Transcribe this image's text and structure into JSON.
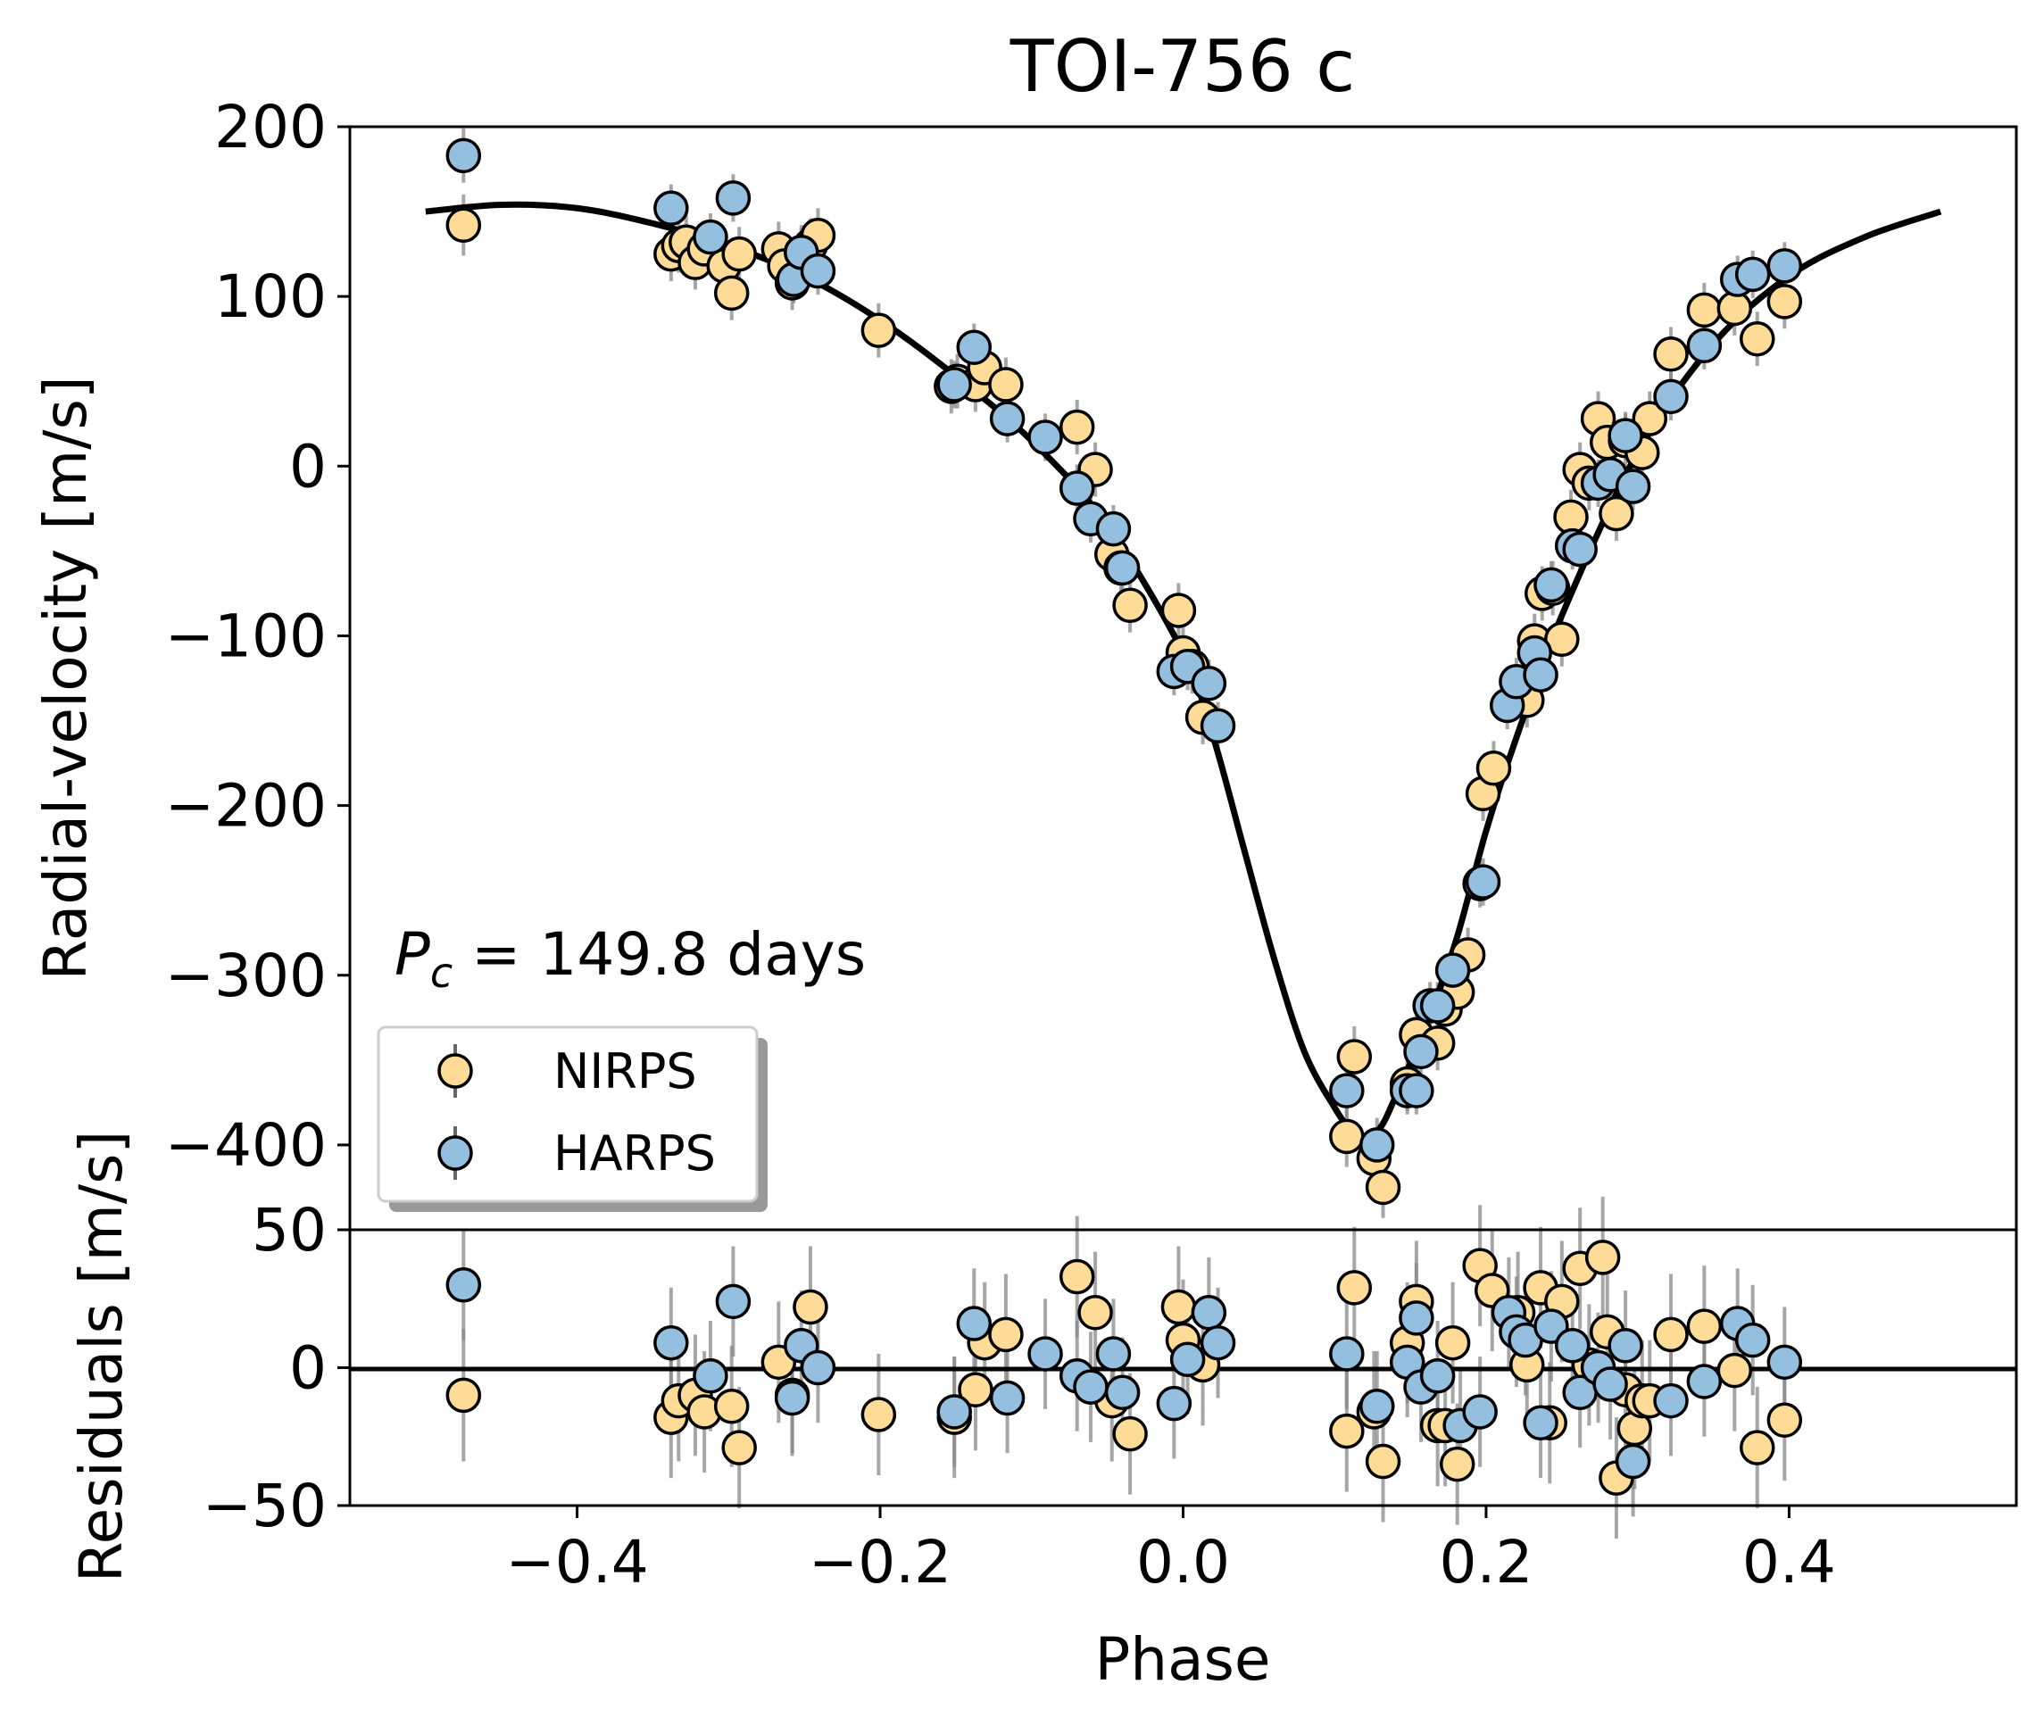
{
  "chart_data": [
    {
      "type": "scatter",
      "title": "TOI-756 c",
      "xlabel": "",
      "ylabel": "Radial-velocity [m/s]",
      "xlim": [
        -0.55,
        0.55
      ],
      "ylim": [
        -450,
        200
      ],
      "yticks": [
        "200",
        "100",
        "0",
        "−100",
        "−200",
        "−300",
        "−400"
      ],
      "ytick_values": [
        200,
        100,
        0,
        -100,
        -200,
        -300,
        -400
      ],
      "grid": false,
      "legend_position": "lower-left",
      "annotation": "P_c = 149.8 days",
      "annotation_italic": "P",
      "annotation_sub": "c",
      "annotation_rest": " = 149.8 days",
      "model": {
        "name": "",
        "x": [
          -0.5,
          -0.45,
          -0.4,
          -0.35,
          -0.3,
          -0.25,
          -0.2,
          -0.15,
          -0.1,
          -0.05,
          0.0,
          0.02,
          0.04,
          0.06,
          0.08,
          0.1,
          0.11,
          0.12,
          0.13,
          0.14,
          0.16,
          0.18,
          0.2,
          0.22,
          0.25,
          0.3,
          0.35,
          0.4,
          0.45,
          0.5
        ],
        "y": [
          150,
          154,
          152,
          143,
          130,
          112,
          86,
          53,
          15,
          -35,
          -110,
          -160,
          -225,
          -290,
          -345,
          -378,
          -390,
          -395,
          -390,
          -372,
          -330,
          -280,
          -215,
          -160,
          -88,
          8,
          72,
          112,
          135,
          150
        ]
      },
      "series": [
        {
          "name": "NIRPS",
          "color": "#fedc98",
          "x": [
            -0.475,
            -0.338,
            -0.333,
            -0.328,
            -0.322,
            -0.316,
            -0.303,
            -0.298,
            -0.293,
            -0.267,
            -0.263,
            -0.258,
            -0.252,
            -0.246,
            -0.241,
            -0.201,
            -0.153,
            -0.149,
            -0.137,
            -0.131,
            -0.117,
            -0.07,
            -0.058,
            -0.047,
            -0.041,
            -0.035,
            -0.003,
            0.0,
            0.006,
            0.013,
            0.108,
            0.113,
            0.126,
            0.132,
            0.148,
            0.154,
            0.168,
            0.173,
            0.181,
            0.188,
            0.198,
            0.205,
            0.227,
            0.232,
            0.237,
            0.244,
            0.25,
            0.256,
            0.262,
            0.268,
            0.274,
            0.28,
            0.286,
            0.292,
            0.303,
            0.308,
            0.322,
            0.344,
            0.364,
            0.379,
            0.397
          ],
          "y": [
            142,
            125,
            130,
            132,
            120,
            128,
            118,
            102,
            125,
            128,
            118,
            108,
            126,
            130,
            136,
            80,
            47,
            50,
            48,
            58,
            48,
            23,
            -2,
            -52,
            -60,
            -82,
            -85,
            -110,
            -118,
            -148,
            -395,
            -348,
            -408,
            -425,
            -364,
            -335,
            -340,
            -320,
            -310,
            -288,
            -193,
            -178,
            -138,
            -103,
            -75,
            -72,
            -102,
            -30,
            -2,
            -10,
            28,
            14,
            -28,
            15,
            8,
            28,
            66,
            92,
            93,
            75,
            97
          ],
          "yerr": [
            18,
            16,
            16,
            16,
            16,
            16,
            16,
            16,
            16,
            16,
            16,
            16,
            16,
            16,
            16,
            16,
            16,
            16,
            16,
            16,
            16,
            16,
            16,
            16,
            16,
            16,
            16,
            16,
            16,
            16,
            18,
            18,
            18,
            18,
            16,
            16,
            16,
            16,
            16,
            16,
            16,
            16,
            16,
            16,
            16,
            16,
            16,
            16,
            16,
            16,
            16,
            16,
            16,
            16,
            16,
            16,
            16,
            16,
            16,
            16,
            16
          ]
        },
        {
          "name": "HARPS",
          "color": "#95bfdf",
          "x": [
            -0.475,
            -0.338,
            -0.312,
            -0.297,
            -0.257,
            -0.252,
            -0.241,
            -0.151,
            -0.138,
            -0.116,
            -0.091,
            -0.07,
            -0.061,
            -0.046,
            -0.04,
            -0.006,
            0.003,
            0.017,
            0.023,
            0.108,
            0.128,
            0.148,
            0.154,
            0.157,
            0.163,
            0.168,
            0.178,
            0.196,
            0.198,
            0.214,
            0.22,
            0.232,
            0.236,
            0.243,
            0.257,
            0.262,
            0.274,
            0.282,
            0.292,
            0.297,
            0.322,
            0.344,
            0.366,
            0.376,
            0.397
          ],
          "y": [
            183,
            152,
            135,
            158,
            110,
            126,
            115,
            48,
            70,
            28,
            17,
            -13,
            -31,
            -37,
            -60,
            -121,
            -118,
            -128,
            -153,
            -368,
            -400,
            -368,
            -368,
            -345,
            -318,
            -318,
            -297,
            -246,
            -245,
            -141,
            -127,
            -110,
            -123,
            -70,
            -47,
            -49,
            -10,
            -5,
            18,
            -12,
            41,
            71,
            110,
            113,
            118
          ],
          "yerr": [
            16,
            14,
            14,
            14,
            14,
            14,
            14,
            14,
            14,
            14,
            14,
            14,
            14,
            14,
            14,
            14,
            14,
            14,
            14,
            16,
            16,
            14,
            14,
            14,
            14,
            14,
            14,
            14,
            14,
            14,
            14,
            14,
            14,
            14,
            14,
            14,
            14,
            14,
            14,
            14,
            14,
            14,
            14,
            14,
            14
          ]
        }
      ]
    },
    {
      "type": "scatter",
      "title": "",
      "xlabel": "Phase",
      "ylabel": "Residuals [m/s]",
      "xlim": [
        -0.55,
        0.55
      ],
      "ylim": [
        -50,
        50
      ],
      "yticks": [
        "50",
        "0",
        "−50"
      ],
      "ytick_values": [
        50,
        0,
        -50
      ],
      "xticks": [
        "−0.4",
        "−0.2",
        "0.0",
        "0.2",
        "0.4"
      ],
      "xtick_values": [
        -0.4,
        -0.2,
        0.0,
        0.2,
        0.4
      ],
      "grid": false,
      "zero_line": 0,
      "series": [
        {
          "name": "NIRPS",
          "color": "#fedc98",
          "x": [
            -0.475,
            -0.338,
            -0.333,
            -0.322,
            -0.316,
            -0.298,
            -0.293,
            -0.267,
            -0.258,
            -0.246,
            -0.201,
            -0.151,
            -0.137,
            -0.131,
            -0.117,
            -0.07,
            -0.058,
            -0.047,
            -0.035,
            -0.003,
            0.0,
            0.013,
            0.108,
            0.113,
            0.126,
            0.132,
            0.148,
            0.154,
            0.168,
            0.173,
            0.178,
            0.181,
            0.196,
            0.204,
            0.221,
            0.227,
            0.236,
            0.242,
            0.25,
            0.262,
            0.268,
            0.277,
            0.28,
            0.286,
            0.292,
            0.298,
            0.303,
            0.308,
            0.322,
            0.344,
            0.364,
            0.379,
            0.397
          ],
          "y": [
            -10,
            -18,
            -12,
            -10,
            -16,
            -14,
            -29,
            2,
            -10,
            22,
            -17,
            -18,
            -8,
            9,
            12,
            33,
            20,
            -12,
            -24,
            22,
            10,
            1,
            -23,
            29,
            -16,
            -34,
            9,
            24,
            -21,
            -21,
            9,
            -35,
            37,
            28,
            20,
            1,
            29,
            -20,
            24,
            36,
            1,
            40,
            13,
            -40,
            -8,
            -22,
            -12,
            -12,
            12,
            15,
            -1,
            -29,
            -19
          ],
          "yerr": [
            24,
            22,
            22,
            22,
            22,
            22,
            22,
            22,
            22,
            22,
            22,
            22,
            22,
            22,
            22,
            22,
            22,
            22,
            22,
            22,
            22,
            22,
            22,
            22,
            22,
            22,
            22,
            22,
            22,
            22,
            22,
            22,
            22,
            22,
            22,
            22,
            22,
            22,
            22,
            22,
            22,
            22,
            22,
            22,
            22,
            22,
            22,
            22,
            22,
            22,
            22,
            22,
            22
          ]
        },
        {
          "name": "HARPS",
          "color": "#95bfdf",
          "x": [
            -0.475,
            -0.338,
            -0.312,
            -0.297,
            -0.258,
            -0.252,
            -0.241,
            -0.151,
            -0.138,
            -0.116,
            -0.091,
            -0.07,
            -0.061,
            -0.046,
            -0.04,
            -0.006,
            0.003,
            0.017,
            0.023,
            0.108,
            0.128,
            0.148,
            0.154,
            0.157,
            0.168,
            0.183,
            0.196,
            0.215,
            0.22,
            0.226,
            0.236,
            0.243,
            0.257,
            0.262,
            0.274,
            0.282,
            0.292,
            0.297,
            0.322,
            0.344,
            0.366,
            0.376,
            0.397
          ],
          "y": [
            30,
            9,
            -3,
            24,
            -11,
            8,
            0,
            -16,
            16,
            -11,
            5,
            -3,
            -7,
            5,
            -9,
            -13,
            3,
            20,
            9,
            5,
            -14,
            2,
            18,
            -7,
            -3,
            -21,
            -16,
            20,
            13,
            10,
            -20,
            15,
            8,
            -9,
            0,
            -6,
            8,
            -34,
            -12,
            -5,
            16,
            10,
            2
          ],
          "yerr": [
            20,
            20,
            20,
            20,
            20,
            20,
            20,
            20,
            20,
            20,
            20,
            20,
            20,
            20,
            20,
            20,
            20,
            20,
            20,
            20,
            20,
            20,
            20,
            20,
            20,
            20,
            20,
            20,
            20,
            20,
            20,
            20,
            20,
            20,
            20,
            20,
            20,
            20,
            20,
            20,
            20,
            20,
            20
          ]
        }
      ]
    }
  ]
}
